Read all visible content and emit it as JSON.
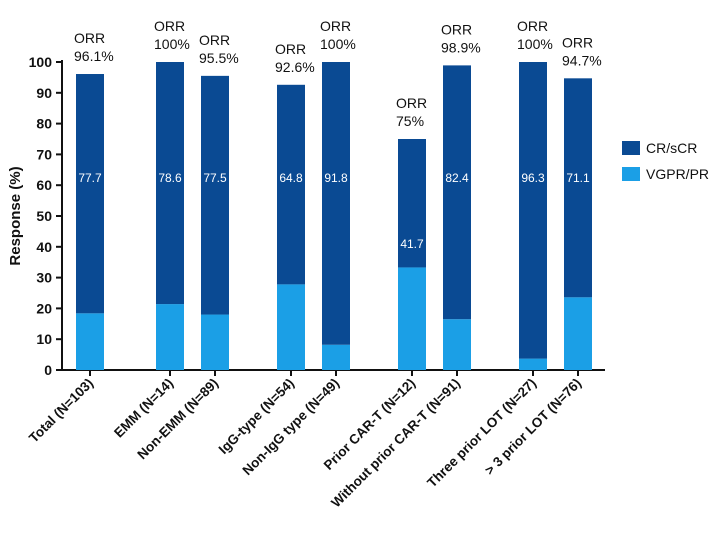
{
  "chart_data": {
    "type": "bar",
    "stacked": true,
    "ylabel": "Response (%)",
    "ylim": [
      0,
      100
    ],
    "yticks": [
      0,
      10,
      20,
      30,
      40,
      50,
      60,
      70,
      80,
      90,
      100
    ],
    "legend_position": "right",
    "colors": {
      "cr": "#0a4a93",
      "vgpr": "#1b9fe6"
    },
    "series": [
      {
        "name": "CR/sCR",
        "key": "cr"
      },
      {
        "name": "VGPR/PR",
        "key": "vgpr"
      }
    ],
    "categories": [
      "Total (N=103)",
      "EMM (N=14)",
      "Non-EMM (N=89)",
      "IgG-type (N=54)",
      "Non-IgG type (N=49)",
      "Prior CAR-T (N=12)",
      "Without prior CAR-T (N=91)",
      "Three prior LOT (N=27)",
      "> 3 prior LOT (N=76)"
    ],
    "groups": [
      0,
      1,
      1,
      2,
      2,
      3,
      3,
      4,
      4
    ],
    "cr_values": [
      77.7,
      78.6,
      77.5,
      64.8,
      91.8,
      41.7,
      82.4,
      96.3,
      71.1
    ],
    "vgpr_values": [
      18.4,
      21.4,
      18.0,
      27.8,
      8.2,
      33.3,
      16.5,
      3.7,
      23.6
    ],
    "cr_labels": [
      "77.7",
      "78.6",
      "77.5",
      "64.8",
      "91.8",
      "41.7",
      "82.4",
      "96.3",
      "71.1"
    ],
    "orr_title": "ORR",
    "orr_values": [
      "96.1%",
      "100%",
      "95.5%",
      "92.6%",
      "100%",
      "75%",
      "98.9%",
      "100%",
      "94.7%"
    ]
  }
}
